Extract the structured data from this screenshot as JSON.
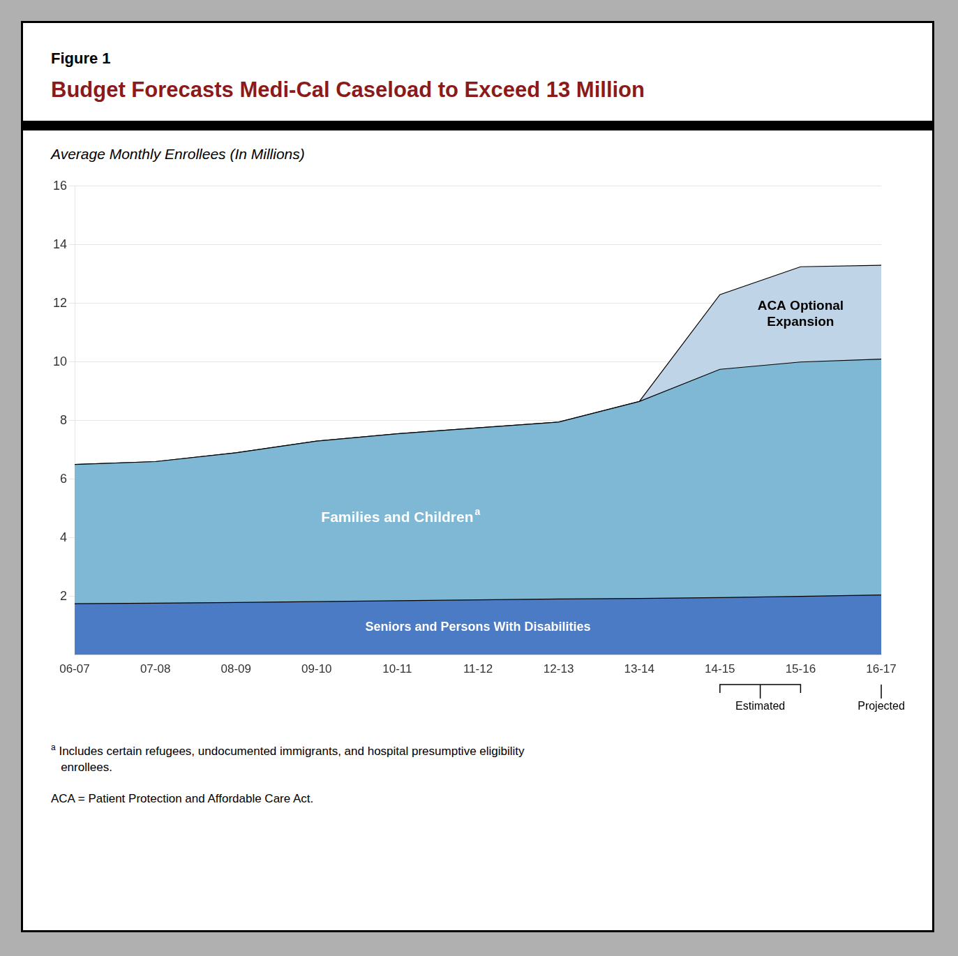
{
  "chart_data": {
    "type": "area",
    "figure_label": "Figure 1",
    "title": "Budget Forecasts Medi-Cal Caseload to Exceed 13 Million",
    "title_color": "#8B1A1A",
    "subtitle": "Average Monthly Enrollees (In Millions)",
    "categories": [
      "06-07",
      "07-08",
      "08-09",
      "09-10",
      "10-11",
      "11-12",
      "12-13",
      "13-14",
      "14-15",
      "15-16",
      "16-17"
    ],
    "series": [
      {
        "name": "Seniors and Persons With Disabilities",
        "color": "#4A7BC4",
        "values": [
          1.75,
          1.77,
          1.79,
          1.82,
          1.85,
          1.88,
          1.91,
          1.93,
          1.96,
          2.0,
          2.05
        ]
      },
      {
        "name": "Families and Children",
        "note": "a",
        "color": "#7EB8D4",
        "values": [
          6.5,
          6.6,
          6.9,
          7.3,
          7.55,
          7.75,
          7.95,
          8.65,
          9.75,
          10.0,
          10.1
        ]
      },
      {
        "name": "ACA Optional\nExpansion",
        "color": "#C0D4E8",
        "values": [
          6.5,
          6.6,
          6.9,
          7.3,
          7.55,
          7.75,
          7.95,
          8.65,
          12.3,
          13.25,
          13.3
        ]
      }
    ],
    "ylim": [
      0,
      16
    ],
    "yticks": [
      2,
      4,
      6,
      8,
      10,
      12,
      14,
      16
    ],
    "grid": true,
    "annotations": [
      {
        "text": "Estimated",
        "categories": [
          "14-15",
          "15-16"
        ]
      },
      {
        "text": "Projected",
        "categories": [
          "16-17"
        ]
      }
    ],
    "footnotes": [
      {
        "marker": "a",
        "text": "Includes certain refugees, undocumented immigrants, and hospital presumptive eligibility\n   enrollees."
      },
      {
        "text": "ACA = Patient Protection and Affordable Care Act."
      }
    ]
  }
}
